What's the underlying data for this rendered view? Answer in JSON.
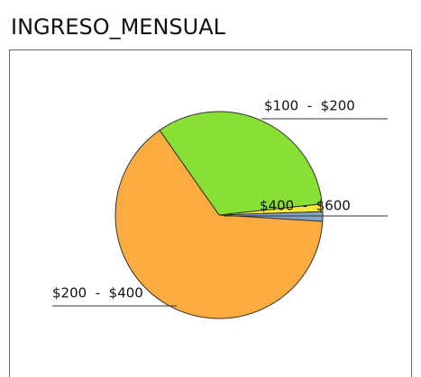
{
  "chart_data": {
    "type": "pie",
    "title": "INGRESO_MENSUAL",
    "categories": [
      "$100  -  $200",
      "$400  -  $600",
      null,
      "$200  -  $400"
    ],
    "values": [
      33,
      1.2,
      1.5,
      64.3
    ],
    "colors": [
      "#88e034",
      "#f5e83a",
      "#7fa6c8",
      "#fbab3f"
    ],
    "start_angle": -35
  }
}
